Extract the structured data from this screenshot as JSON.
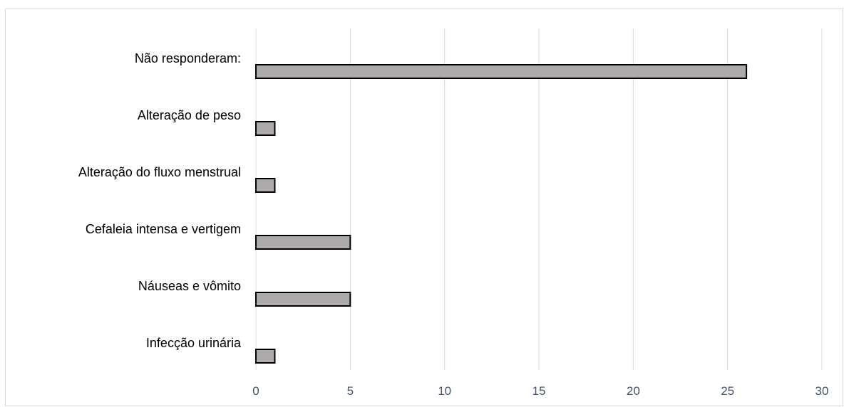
{
  "chart_data": {
    "type": "bar",
    "orientation": "horizontal",
    "categories": [
      "Não responderam:",
      "Alteração de peso",
      "Alteração do fluxo menstrual",
      "Cefaleia intensa e vertigem",
      "Náuseas e vômito",
      "Infecção urinária"
    ],
    "values": [
      26,
      1,
      1,
      5,
      5,
      1
    ],
    "xlim": [
      0,
      30
    ],
    "x_ticks": [
      "0",
      "5",
      "10",
      "15",
      "20",
      "25",
      "30"
    ],
    "title": "",
    "xlabel": "",
    "ylabel": "",
    "grid": "vertical",
    "legend": "none",
    "colors": {
      "bar_fill": "#aeaaaa",
      "bar_stroke": "#000000",
      "grid": "#d9d9d9",
      "tick_label": "#44546a",
      "category_label": "#000000"
    }
  }
}
